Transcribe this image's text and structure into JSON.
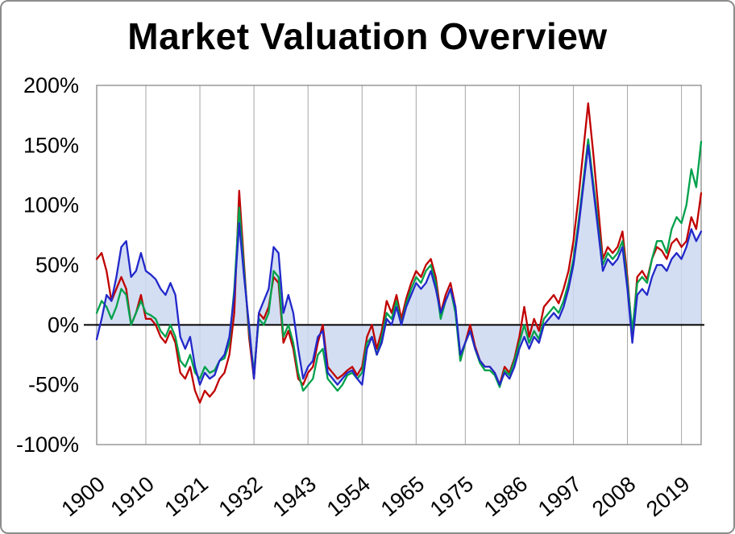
{
  "title": "Market Valuation Overview",
  "chart_data": {
    "type": "line",
    "title": "Market Valuation Overview",
    "xlabel": "",
    "ylabel": "",
    "x": {
      "start": 1900,
      "end": 2023,
      "step": 1
    },
    "ylim": [
      -100,
      200
    ],
    "y_unit": "%",
    "x_ticks": [
      1900,
      1910,
      1921,
      1932,
      1943,
      1954,
      1965,
      1975,
      1986,
      1997,
      2008,
      2019
    ],
    "y_ticks": [
      200,
      150,
      100,
      50,
      0,
      -50,
      -100
    ],
    "y_tick_labels": [
      "200%",
      "150%",
      "100%",
      "50%",
      "0%",
      "-50%",
      "-100%"
    ],
    "grid": "vertical-only",
    "legend": "none",
    "zero_line": true,
    "area_fill_series": "blue-indicator",
    "colors": {
      "red": "#C00000",
      "green": "#00A14B",
      "blue": "#2228C9",
      "area": "#CBD8F1",
      "grid": "#A6A6A6",
      "zero_line": "#000000",
      "plot_border": "#7F7F7F"
    },
    "series": [
      {
        "name": "red-indicator",
        "color_key": "red",
        "values": [
          55,
          60,
          45,
          20,
          30,
          40,
          30,
          0,
          10,
          25,
          5,
          5,
          0,
          -10,
          -15,
          -5,
          -15,
          -40,
          -45,
          -35,
          -55,
          -65,
          -55,
          -60,
          -55,
          -45,
          -40,
          -25,
          10,
          112,
          50,
          -10,
          -45,
          10,
          5,
          15,
          40,
          35,
          -15,
          -5,
          -20,
          -45,
          -50,
          -40,
          -35,
          -15,
          0,
          -35,
          -40,
          -45,
          -42,
          -38,
          -35,
          -42,
          -35,
          -10,
          0,
          -20,
          -5,
          20,
          10,
          25,
          5,
          22,
          35,
          45,
          40,
          50,
          55,
          40,
          10,
          25,
          35,
          15,
          -30,
          -15,
          0,
          -18,
          -30,
          -35,
          -35,
          -40,
          -50,
          -35,
          -40,
          -28,
          -10,
          15,
          -10,
          5,
          -5,
          15,
          20,
          25,
          18,
          30,
          45,
          70,
          105,
          145,
          185,
          145,
          100,
          55,
          65,
          60,
          65,
          78,
          40,
          -10,
          40,
          45,
          38,
          55,
          65,
          62,
          55,
          68,
          72,
          65,
          70,
          90,
          80,
          110
        ]
      },
      {
        "name": "green-indicator",
        "color_key": "green",
        "values": [
          10,
          20,
          15,
          5,
          15,
          30,
          25,
          0,
          10,
          20,
          10,
          8,
          5,
          -5,
          -10,
          0,
          -10,
          -30,
          -35,
          -25,
          -40,
          -45,
          -35,
          -40,
          -38,
          -30,
          -28,
          -15,
          30,
          98,
          45,
          -5,
          -40,
          5,
          0,
          10,
          45,
          40,
          -10,
          0,
          -15,
          -40,
          -55,
          -50,
          -45,
          -25,
          -20,
          -45,
          -50,
          -55,
          -50,
          -42,
          -40,
          -45,
          -40,
          -15,
          -10,
          -25,
          -10,
          10,
          5,
          20,
          0,
          18,
          30,
          40,
          35,
          45,
          50,
          35,
          5,
          20,
          30,
          10,
          -30,
          -15,
          -5,
          -20,
          -32,
          -38,
          -38,
          -42,
          -52,
          -38,
          -42,
          -30,
          -15,
          0,
          -15,
          -5,
          -12,
          5,
          10,
          15,
          10,
          20,
          35,
          55,
          85,
          120,
          155,
          120,
          85,
          50,
          60,
          55,
          60,
          70,
          35,
          -5,
          35,
          40,
          35,
          55,
          70,
          70,
          60,
          80,
          90,
          85,
          100,
          130,
          115,
          153
        ]
      },
      {
        "name": "blue-indicator",
        "color_key": "blue",
        "values": [
          -12,
          5,
          25,
          20,
          40,
          65,
          70,
          40,
          45,
          60,
          45,
          42,
          38,
          30,
          25,
          35,
          25,
          -10,
          -20,
          -10,
          -35,
          -50,
          -40,
          -45,
          -42,
          -30,
          -25,
          -10,
          25,
          85,
          40,
          0,
          -45,
          10,
          20,
          30,
          65,
          60,
          10,
          25,
          10,
          -20,
          -45,
          -35,
          -30,
          -10,
          -5,
          -40,
          -45,
          -50,
          -45,
          -40,
          -38,
          -45,
          -50,
          -20,
          -10,
          -25,
          -15,
          5,
          0,
          15,
          0,
          15,
          25,
          35,
          30,
          35,
          45,
          30,
          10,
          20,
          30,
          15,
          -25,
          -15,
          -5,
          -20,
          -30,
          -35,
          -35,
          -40,
          -50,
          -40,
          -45,
          -35,
          -20,
          -10,
          -20,
          -10,
          -15,
          0,
          5,
          10,
          5,
          15,
          30,
          50,
          80,
          115,
          150,
          115,
          80,
          45,
          55,
          50,
          55,
          65,
          30,
          -15,
          25,
          30,
          25,
          40,
          50,
          50,
          45,
          55,
          60,
          55,
          65,
          80,
          70,
          78
        ]
      }
    ]
  }
}
